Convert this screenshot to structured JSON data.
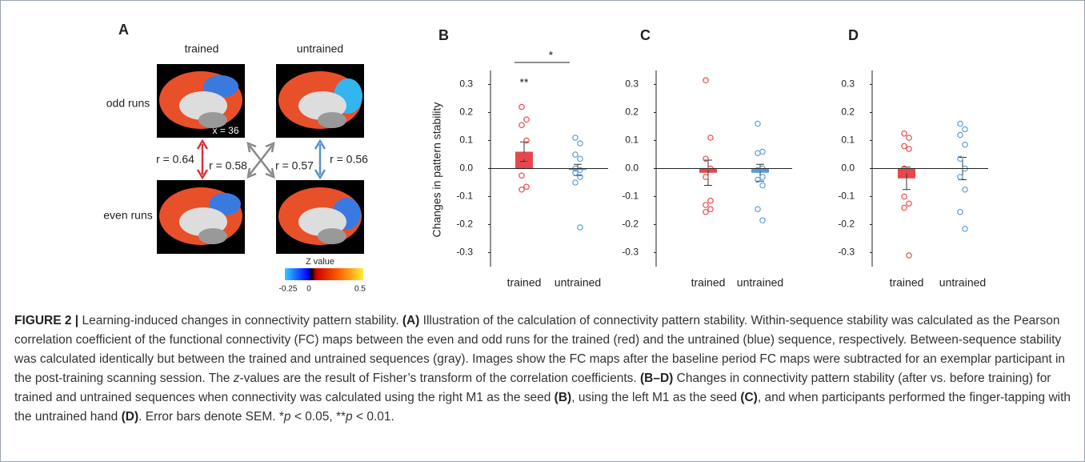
{
  "panel_a": {
    "label": "A",
    "columns": [
      "trained",
      "untrained"
    ],
    "rows": [
      "odd runs",
      "even runs"
    ],
    "slice_label": "x = 36",
    "correlations": [
      "r = 0.64",
      "r = 0.58",
      "r = 0.57",
      "r = 0.56"
    ],
    "colorbar": {
      "title": "Z value",
      "ticks": [
        -0.25,
        0,
        0.5
      ]
    }
  },
  "chart_data": [
    {
      "type": "bar",
      "title": "B",
      "ylabel": "Changes in pattern stability",
      "categories": [
        "trained",
        "untrained"
      ],
      "values": [
        0.06,
        -0.005
      ],
      "errors": [
        0.035,
        0.02
      ],
      "colors": [
        "#e8474c",
        "#5b9bd5"
      ],
      "points": [
        [
          0.22,
          0.175,
          0.155,
          0.1,
          0.05,
          0.045,
          0.04,
          0.015,
          -0.025,
          -0.065,
          -0.075
        ],
        [
          0.11,
          0.09,
          0.05,
          0.035,
          0.0,
          -0.005,
          -0.015,
          -0.03,
          -0.05,
          -0.21
        ]
      ],
      "annotations": [
        "**",
        "*"
      ],
      "ylim": [
        -0.35,
        0.35
      ],
      "yticks": [
        0.3,
        0.2,
        0.1,
        {
          "value": 0,
          "label": "0.0"
        },
        -0.1,
        -0.2,
        -0.3
      ]
    },
    {
      "type": "bar",
      "title": "C",
      "categories": [
        "trained",
        "untrained"
      ],
      "values": [
        -0.015,
        -0.015
      ],
      "errors": [
        0.045,
        0.03
      ],
      "colors": [
        "#e8474c",
        "#5b9bd5"
      ],
      "points": [
        [
          0.315,
          0.11,
          0.035,
          0.0,
          -0.03,
          -0.115,
          -0.13,
          -0.145,
          -0.155
        ],
        [
          0.16,
          0.06,
          0.055,
          0.0,
          -0.005,
          -0.03,
          -0.04,
          -0.06,
          -0.145,
          -0.185
        ]
      ],
      "ylim": [
        -0.35,
        0.35
      ],
      "yticks": [
        0.3,
        0.2,
        0.1,
        {
          "value": 0,
          "label": "0.0"
        },
        -0.1,
        -0.2,
        -0.3
      ]
    },
    {
      "type": "bar",
      "title": "D",
      "categories": [
        "trained",
        "untrained"
      ],
      "values": [
        -0.035,
        0.0
      ],
      "errors": [
        0.04,
        0.04
      ],
      "colors": [
        "#e8474c",
        "#5b9bd5"
      ],
      "points": [
        [
          0.125,
          0.11,
          0.08,
          0.07,
          0.0,
          -0.01,
          -0.1,
          -0.125,
          -0.14,
          -0.31
        ],
        [
          0.16,
          0.14,
          0.12,
          0.085,
          0.035,
          0.0,
          -0.03,
          -0.075,
          -0.155,
          -0.215
        ]
      ],
      "ylim": [
        -0.35,
        0.35
      ],
      "yticks": [
        0.3,
        0.2,
        0.1,
        {
          "value": 0,
          "label": "0.0"
        },
        -0.1,
        -0.2,
        -0.3
      ]
    }
  ],
  "caption": {
    "label": "FIGURE 2 |",
    "parts": [
      "Learning-induced changes in connectivity pattern stability. ",
      "(A)",
      " Illustration of the calculation of connectivity pattern stability. Within-sequence stability was calculated as the Pearson correlation coefficient of the functional connectivity (FC) maps between the even and odd runs for the trained (red) and the untrained (blue) sequence, respectively. Between-sequence stability was calculated identically but between the trained and untrained sequences (gray). Images show the FC maps after the baseline period FC maps were subtracted for an exemplar participant in the post-training scanning session. The ",
      "z",
      "-values are the result of Fisher’s transform of the correlation coefficients. ",
      "(B–D)",
      " Changes in connectivity pattern stability (after vs. before training) for trained and untrained sequences when connectivity was calculated using the right M1 as the seed ",
      "(B)",
      ", using the left M1 as the seed ",
      "(C)",
      ", and when participants performed the finger-tapping with the untrained hand ",
      "(D)",
      ". Error bars denote SEM. *",
      "p",
      " < 0.05, **",
      "p",
      " < 0.01."
    ]
  }
}
